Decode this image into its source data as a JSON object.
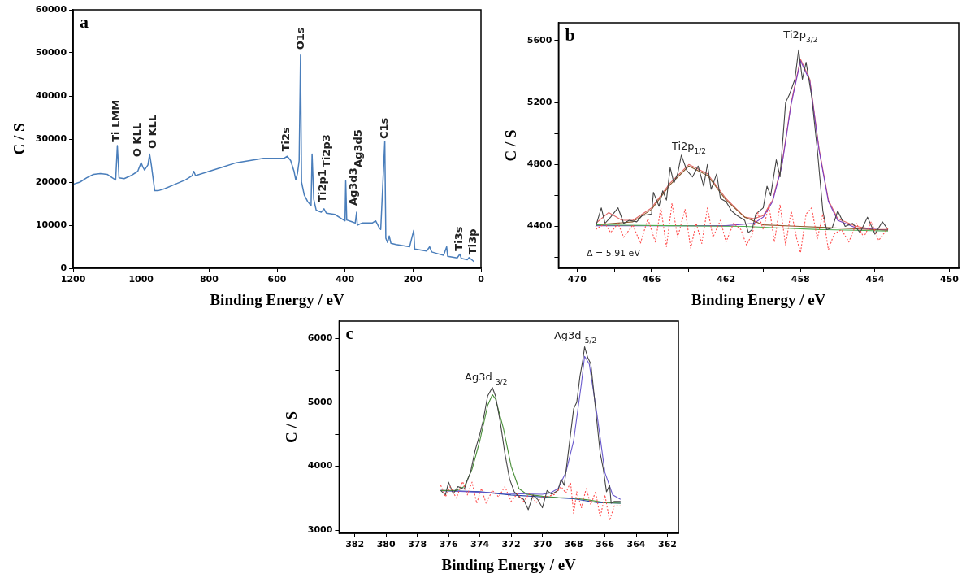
{
  "chart_data": [
    {
      "type": "line",
      "title": "a",
      "xlabel": "Binding Energy / eV",
      "ylabel": "C / S",
      "xlim": [
        1200,
        0
      ],
      "xticks": [
        1200,
        1000,
        800,
        600,
        400,
        200,
        0
      ],
      "ylim": [
        0,
        60000
      ],
      "yticks": [
        0,
        10000,
        20000,
        30000,
        40000,
        50000,
        60000
      ],
      "grid": false,
      "marker": "none",
      "legend": false,
      "series": [
        {
          "color": "#4a7ebb",
          "x": [
            1200,
            1180,
            1160,
            1140,
            1120,
            1100,
            1085,
            1075,
            1070,
            1065,
            1050,
            1030,
            1010,
            1000,
            995,
            990,
            980,
            975,
            970,
            960,
            950,
            930,
            900,
            870,
            850,
            845,
            840,
            800,
            760,
            720,
            680,
            640,
            600,
            580,
            570,
            560,
            550,
            545,
            540,
            535,
            531,
            528,
            520,
            510,
            500,
            497,
            492,
            485,
            470,
            462,
            455,
            430,
            410,
            400,
            398,
            395,
            380,
            370,
            366,
            364,
            350,
            320,
            310,
            300,
            295,
            283,
            280,
            275,
            270,
            265,
            250,
            210,
            198,
            195,
            160,
            151,
            145,
            110,
            101,
            98,
            70,
            62,
            58,
            40,
            35,
            20
          ],
          "values": [
            19500,
            20000,
            21000,
            21800,
            22000,
            21800,
            21000,
            20500,
            28500,
            21000,
            20800,
            21500,
            22500,
            24500,
            23500,
            22800,
            24000,
            26500,
            24000,
            18000,
            18000,
            18500,
            19500,
            20500,
            21500,
            22500,
            21500,
            22500,
            23500,
            24500,
            25000,
            25500,
            25500,
            25500,
            26000,
            25000,
            22500,
            20500,
            22000,
            25000,
            49500,
            20000,
            17000,
            15500,
            14500,
            26500,
            16000,
            13500,
            13000,
            13800,
            12800,
            12500,
            11500,
            11000,
            20300,
            11200,
            10800,
            10500,
            13000,
            10000,
            10500,
            10500,
            11000,
            9500,
            9000,
            29500,
            7000,
            6000,
            7500,
            5800,
            5500,
            5000,
            8800,
            4500,
            4000,
            5000,
            3800,
            3000,
            5000,
            2800,
            2400,
            3300,
            2300,
            2000,
            2500,
            1500
          ]
        }
      ],
      "annotations": [
        "Ti LMM",
        "O KLL",
        "O KLL",
        "Ti2s",
        "O1s",
        "Ti2p1",
        "Ti2p3",
        "Ag3d3",
        "Ag3d5",
        "C1s",
        "Ti3s",
        "Ti3p"
      ]
    },
    {
      "type": "line",
      "title": "b",
      "xlabel": "Binding Energy / eV",
      "ylabel": "C / S",
      "xlim": [
        471,
        449.5
      ],
      "xticks": [
        470,
        {
          "value": 468,
          "label": null
        },
        466,
        {
          "value": 464,
          "label": null
        },
        462,
        {
          "value": 460,
          "label": null
        },
        458,
        {
          "value": 456,
          "label": null
        },
        454,
        {
          "value": 452,
          "label": null
        },
        450
      ],
      "ylim": [
        4130,
        5715
      ],
      "yticks": [
        {
          "value": 4200,
          "label": null
        },
        4400,
        {
          "value": 4600,
          "label": null
        },
        4800,
        {
          "value": 5000,
          "label": null
        },
        5200,
        {
          "value": 5400,
          "label": null
        },
        5600
      ],
      "grid": false,
      "marker": "none",
      "legend": false,
      "series": [
        {
          "color": "#ff4d4d",
          "line_style": "dotted",
          "x": [
            469,
            468.5,
            468.2,
            467.8,
            467.5,
            467,
            466.6,
            466.2,
            465.8,
            465.5,
            465.2,
            464.9,
            464.6,
            464.2,
            463.9,
            463.6,
            463.3,
            463,
            462.7,
            462.3,
            462,
            461.6,
            461.2,
            460.9,
            460.6,
            460.3,
            460,
            459.7,
            459.4,
            459.1,
            458.8,
            458.5,
            458.2,
            458,
            457.7,
            457.4,
            457.1,
            456.8,
            456.5,
            456.2,
            455.8,
            455.4,
            455,
            454.6,
            454.2,
            453.8,
            453.3
          ],
          "values": [
            4380,
            4420,
            4360,
            4420,
            4330,
            4410,
            4290,
            4450,
            4300,
            4520,
            4270,
            4550,
            4330,
            4510,
            4260,
            4420,
            4290,
            4520,
            4330,
            4440,
            4300,
            4420,
            4380,
            4280,
            4350,
            4490,
            4380,
            4540,
            4300,
            4540,
            4280,
            4500,
            4320,
            4230,
            4480,
            4520,
            4320,
            4480,
            4250,
            4350,
            4380,
            4300,
            4420,
            4330,
            4430,
            4310,
            4390
          ]
        },
        {
          "color": "#444444",
          "x": [
            469,
            468.7,
            468.5,
            468.2,
            467.8,
            467.5,
            467.2,
            466.8,
            466.5,
            466,
            465.9,
            465.6,
            465.4,
            465.2,
            465,
            464.8,
            464.6,
            464.4,
            464.1,
            463.8,
            463.5,
            463.2,
            463,
            462.8,
            462.5,
            462.3,
            462,
            461.7,
            461.4,
            461,
            460.8,
            460.6,
            460.4,
            460,
            459.8,
            459.6,
            459.3,
            459.1,
            458.8,
            458.6,
            458.3,
            458.1,
            457.9,
            457.7,
            457.4,
            457.1,
            456.8,
            456.6,
            456.3,
            456,
            455.6,
            455.2,
            454.8,
            454.4,
            454,
            453.6,
            453.3
          ],
          "values": [
            4400,
            4520,
            4420,
            4460,
            4520,
            4420,
            4440,
            4430,
            4470,
            4480,
            4620,
            4530,
            4630,
            4570,
            4780,
            4680,
            4740,
            4860,
            4760,
            4720,
            4790,
            4660,
            4800,
            4640,
            4740,
            4580,
            4560,
            4500,
            4470,
            4440,
            4360,
            4380,
            4480,
            4520,
            4660,
            4600,
            4830,
            4720,
            5200,
            5250,
            5350,
            5540,
            5350,
            5460,
            5240,
            4900,
            4500,
            4380,
            4390,
            4500,
            4400,
            4420,
            4360,
            4460,
            4350,
            4430,
            4380
          ]
        },
        {
          "color": "#4caf50",
          "x": [
            469,
            465,
            461,
            459,
            457,
            455,
            453.3
          ],
          "values": [
            4410,
            4405,
            4400,
            4390,
            4380,
            4375,
            4370
          ]
        },
        {
          "color": "#8b5a2b",
          "x": [
            469,
            467,
            466,
            465,
            464,
            463,
            462,
            461,
            460,
            458,
            456,
            453.3
          ],
          "values": [
            4410,
            4430,
            4510,
            4670,
            4790,
            4730,
            4570,
            4460,
            4410,
            4400,
            4390,
            4375
          ]
        },
        {
          "color": "#7b3fc4",
          "x": [
            469,
            462,
            460.5,
            460,
            459.5,
            459,
            458.5,
            458,
            457.5,
            457,
            456.5,
            456,
            455,
            453.3
          ],
          "values": [
            4405,
            4405,
            4420,
            4460,
            4560,
            4790,
            5190,
            5470,
            5340,
            4890,
            4560,
            4440,
            4390,
            4375
          ]
        },
        {
          "color": "#e06666",
          "x": [
            469,
            468.3,
            467.6,
            467,
            466,
            465,
            464,
            463,
            462,
            461,
            460.5,
            460,
            459.5,
            459,
            458.5,
            458,
            457.5,
            457,
            456.5,
            456,
            455,
            454,
            453.3
          ],
          "values": [
            4420,
            4490,
            4440,
            4440,
            4520,
            4680,
            4800,
            4740,
            4580,
            4460,
            4450,
            4470,
            4570,
            4800,
            5200,
            5480,
            5350,
            4900,
            4570,
            4450,
            4400,
            4380,
            4380
          ]
        }
      ],
      "annotations": [
        "Ti2p$_{1/2}$",
        "Ti2p$_{3/2}$",
        "Δ = 5.91 eV"
      ]
    },
    {
      "type": "line",
      "title": "c",
      "xlabel": "Binding Energy / eV",
      "ylabel": "C / S",
      "xlim": [
        383,
        361.3
      ],
      "xticks": [
        382,
        380,
        378,
        376,
        374,
        372,
        370,
        368,
        366,
        364,
        362
      ],
      "ylim": [
        2950,
        6270
      ],
      "yticks": [
        3000,
        {
          "value": 3500,
          "label": null
        },
        4000,
        {
          "value": 4500,
          "label": null
        },
        5000,
        {
          "value": 5500,
          "label": null
        },
        6000
      ],
      "grid": false,
      "marker": "none",
      "legend": false,
      "series": [
        {
          "color": "#ff4d4d",
          "line_style": "dotted",
          "x": [
            376.5,
            376.2,
            375.9,
            375.5,
            375.1,
            374.8,
            374.5,
            374.2,
            373.9,
            373.6,
            373.2,
            372.8,
            372.4,
            372,
            371.6,
            371.2,
            370.8,
            370.4,
            370,
            369.6,
            369.2,
            368.8,
            368.5,
            368.2,
            368,
            367.8,
            367.5,
            367.2,
            366.9,
            366.6,
            366.3,
            366,
            365.7,
            365.4,
            365
          ],
          "values": [
            3700,
            3520,
            3680,
            3500,
            3760,
            3550,
            3750,
            3420,
            3650,
            3420,
            3620,
            3520,
            3680,
            3450,
            3570,
            3450,
            3580,
            3430,
            3520,
            3530,
            3560,
            3680,
            3580,
            3750,
            3260,
            3600,
            3350,
            3650,
            3400,
            3600,
            3200,
            3550,
            3150,
            3380,
            3380
          ]
        },
        {
          "color": "#444444",
          "x": [
            376.5,
            376.2,
            376,
            375.7,
            375.4,
            375,
            374.8,
            374.6,
            374.3,
            374,
            373.8,
            373.5,
            373.2,
            373,
            372.7,
            372.4,
            372.1,
            371.8,
            371.5,
            371.2,
            370.9,
            370.6,
            370.3,
            370,
            369.7,
            369.4,
            369,
            368.8,
            368.6,
            368.4,
            368.2,
            368,
            367.8,
            367.6,
            367.4,
            367.3,
            367.1,
            366.9,
            366.6,
            366.3,
            366.1,
            365.9,
            365.7,
            365.6,
            365.4,
            365
          ],
          "values": [
            3620,
            3550,
            3750,
            3570,
            3680,
            3640,
            3780,
            3900,
            4250,
            4500,
            4700,
            5100,
            5230,
            5100,
            4700,
            4200,
            3800,
            3600,
            3520,
            3480,
            3320,
            3550,
            3480,
            3350,
            3620,
            3560,
            3620,
            3800,
            3700,
            4100,
            4500,
            4900,
            5000,
            5400,
            5680,
            5870,
            5700,
            5600,
            4900,
            4200,
            3950,
            3600,
            3700,
            3420,
            3450,
            3450
          ]
        },
        {
          "color": "#4a8f3a",
          "x": [
            376.5,
            375.5,
            375,
            374.5,
            374,
            373.5,
            373.2,
            373,
            372.5,
            372,
            371.5,
            371,
            370,
            369,
            368,
            367,
            366,
            365
          ],
          "values": [
            3620,
            3620,
            3680,
            3950,
            4400,
            4950,
            5120,
            5050,
            4600,
            4000,
            3650,
            3560,
            3530,
            3510,
            3500,
            3470,
            3430,
            3420
          ]
        },
        {
          "color": "#6a5acd",
          "x": [
            376.5,
            372,
            370,
            369.5,
            369,
            368.5,
            368,
            367.5,
            367.3,
            367,
            366.5,
            366,
            365.5,
            365
          ],
          "values": [
            3620,
            3570,
            3560,
            3580,
            3650,
            3900,
            4400,
            5300,
            5720,
            5600,
            4800,
            3900,
            3550,
            3480
          ]
        },
        {
          "color": "#1f3fa8",
          "x": [
            376.5,
            374,
            372,
            370,
            368,
            366.5,
            365
          ],
          "values": [
            3620,
            3600,
            3550,
            3520,
            3490,
            3430,
            3420
          ]
        }
      ],
      "annotations": [
        "Ag3d $_{3/2}$",
        "Ag3d $_{5/2}$"
      ]
    }
  ]
}
